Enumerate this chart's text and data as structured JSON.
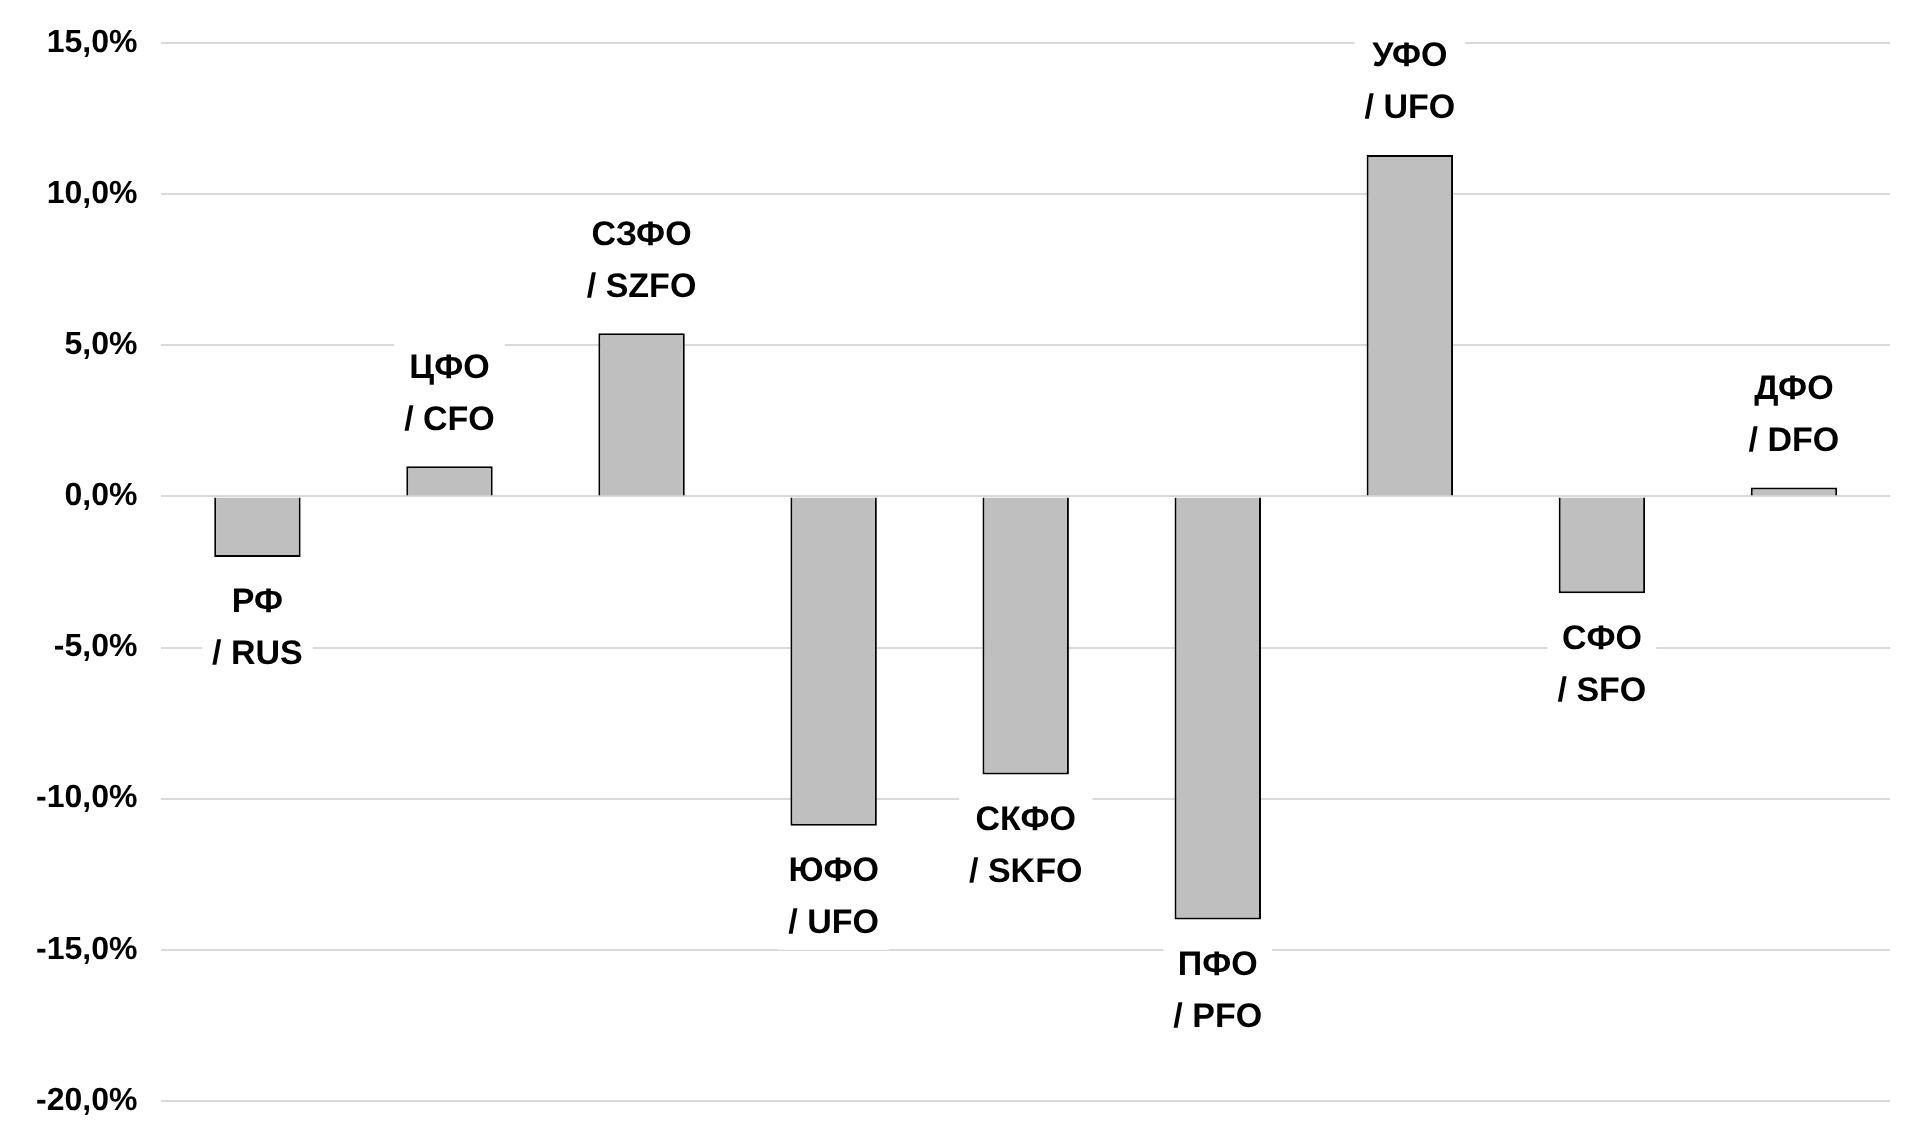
{
  "chart_data": {
    "type": "bar",
    "categories": [
      "РФ\n/ RUS",
      "ЦФО\n/ CFO",
      "СЗФО\n/ SZFO",
      "ЮФО\n/ UFO",
      "СКФО\n/ SKFO",
      "ПФО\n/ PFO",
      "УФО\n/ UFO",
      "СФО\n/ SFO",
      "ДФО\n/ DFO"
    ],
    "values": [
      -2.0,
      1.0,
      5.4,
      -10.9,
      -9.2,
      -14.0,
      11.3,
      -3.2,
      0.3
    ],
    "color": "#bfbfbf",
    "ylim": [
      -20,
      15
    ],
    "yticks": [
      {
        "value": -20,
        "label": "-20,0%"
      },
      {
        "value": -15,
        "label": "-15,0%"
      },
      {
        "value": -10,
        "label": "-10,0%"
      },
      {
        "value": -5,
        "label": "-5,0%"
      },
      {
        "value": 0,
        "label": "0,0%"
      },
      {
        "value": 5,
        "label": "5,0%"
      },
      {
        "value": 10,
        "label": "10,0%"
      },
      {
        "value": 15,
        "label": "15,0%"
      }
    ],
    "grid": "y",
    "tick_labels": "y",
    "legend": false
  }
}
